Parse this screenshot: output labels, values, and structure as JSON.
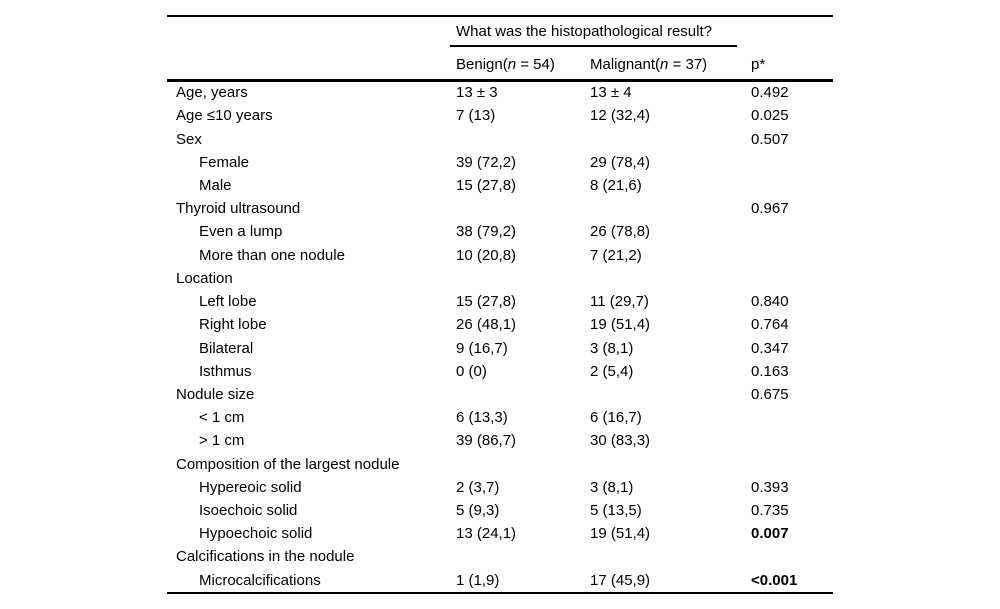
{
  "table": {
    "span_header": "What was the histopathological result?",
    "columns": {
      "benign": {
        "prefix": "Benign(",
        "n": "n",
        "suffix": " = 54)"
      },
      "malignant": {
        "prefix": "Malignant(",
        "n": "n",
        "suffix": " = 37)"
      },
      "p": "p*"
    },
    "rows": [
      {
        "label": "Age, years",
        "benign": "13 ± 3",
        "malignant": "13 ± 4",
        "p": "0.492",
        "indent": false,
        "p_bold": false
      },
      {
        "label": "Age ≤10 years",
        "benign": "7 (13)",
        "malignant": "12 (32,4)",
        "p": "0.025",
        "indent": false,
        "p_bold": false
      },
      {
        "label": "Sex",
        "benign": "",
        "malignant": "",
        "p": "0.507",
        "indent": false,
        "p_bold": false
      },
      {
        "label": "Female",
        "benign": "39 (72,2)",
        "malignant": "29 (78,4)",
        "p": "",
        "indent": true,
        "p_bold": false
      },
      {
        "label": "Male",
        "benign": "15 (27,8)",
        "malignant": "8 (21,6)",
        "p": "",
        "indent": true,
        "p_bold": false
      },
      {
        "label": "Thyroid ultrasound",
        "benign": "",
        "malignant": "",
        "p": "0.967",
        "indent": false,
        "p_bold": false
      },
      {
        "label": "Even a lump",
        "benign": "38 (79,2)",
        "malignant": "26 (78,8)",
        "p": "",
        "indent": true,
        "p_bold": false
      },
      {
        "label": "More than one nodule",
        "benign": "10 (20,8)",
        "malignant": "7 (21,2)",
        "p": "",
        "indent": true,
        "p_bold": false
      },
      {
        "label": "Location",
        "benign": "",
        "malignant": "",
        "p": "",
        "indent": false,
        "p_bold": false
      },
      {
        "label": "Left lobe",
        "benign": "15 (27,8)",
        "malignant": "11 (29,7)",
        "p": "0.840",
        "indent": true,
        "p_bold": false
      },
      {
        "label": "Right lobe",
        "benign": "26 (48,1)",
        "malignant": "19 (51,4)",
        "p": "0.764",
        "indent": true,
        "p_bold": false
      },
      {
        "label": "Bilateral",
        "benign": "9 (16,7)",
        "malignant": "3 (8,1)",
        "p": "0.347",
        "indent": true,
        "p_bold": false
      },
      {
        "label": "Isthmus",
        "benign": "0 (0)",
        "malignant": "2 (5,4)",
        "p": "0.163",
        "indent": true,
        "p_bold": false
      },
      {
        "label": "Nodule size",
        "benign": "",
        "malignant": "",
        "p": "0.675",
        "indent": false,
        "p_bold": false
      },
      {
        "label": "< 1 cm",
        "benign": "6 (13,3)",
        "malignant": "6 (16,7)",
        "p": "",
        "indent": true,
        "p_bold": false
      },
      {
        "label": "> 1 cm",
        "benign": "39 (86,7)",
        "malignant": "30 (83,3)",
        "p": "",
        "indent": true,
        "p_bold": false
      },
      {
        "label": "Composition of the largest nodule",
        "benign": "",
        "malignant": "",
        "p": "",
        "indent": false,
        "p_bold": false
      },
      {
        "label": "Hypereoic solid",
        "benign": "2 (3,7)",
        "malignant": "3 (8,1)",
        "p": "0.393",
        "indent": true,
        "p_bold": false
      },
      {
        "label": "Isoechoic solid",
        "benign": "5 (9,3)",
        "malignant": "5 (13,5)",
        "p": "0.735",
        "indent": true,
        "p_bold": false
      },
      {
        "label": "Hypoechoic solid",
        "benign": "13 (24,1)",
        "malignant": "19 (51,4)",
        "p": "0.007",
        "indent": true,
        "p_bold": true
      },
      {
        "label": "Calcifications in the nodule",
        "benign": "",
        "malignant": "",
        "p": "",
        "indent": false,
        "p_bold": false
      },
      {
        "label": "Microcalcifications",
        "benign": "1 (1,9)",
        "malignant": "17 (45,9)",
        "p": "<0.001",
        "indent": true,
        "p_bold": true
      }
    ]
  }
}
